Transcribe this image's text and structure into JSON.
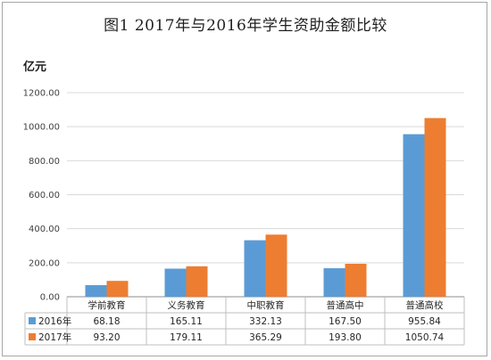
{
  "chart_data": {
    "type": "bar",
    "title": "图1   2017年与2016年学生资助金额比较",
    "ylabel": "亿元",
    "ylim": [
      0,
      1200
    ],
    "yticks": [
      "0.00",
      "200.00",
      "400.00",
      "600.00",
      "800.00",
      "1000.00",
      "1200.00"
    ],
    "categories": [
      "学前教育",
      "义务教育",
      "中职教育",
      "普通高中",
      "普通高校"
    ],
    "series": [
      {
        "name": "2016年",
        "color": "#5b9bd5",
        "values": [
          68.18,
          165.11,
          332.13,
          167.5,
          955.84
        ],
        "labels": [
          "68.18",
          "165.11",
          "332.13",
          "167.50",
          "955.84"
        ]
      },
      {
        "name": "2017年",
        "color": "#ed7d31",
        "values": [
          93.2,
          179.11,
          365.29,
          193.8,
          1050.74
        ],
        "labels": [
          "93.20",
          "179.11",
          "365.29",
          "193.80",
          "1050.74"
        ]
      }
    ],
    "grid": true,
    "legend": "data-table"
  }
}
